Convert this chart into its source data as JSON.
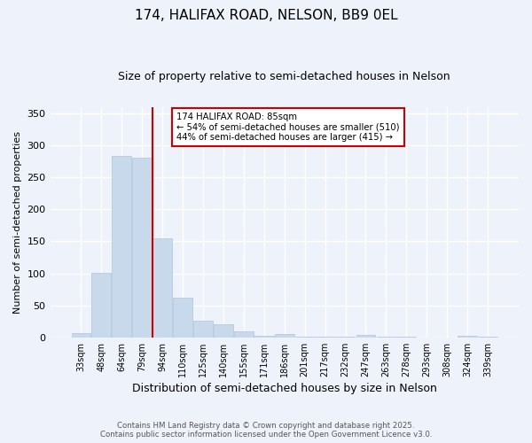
{
  "title": "174, HALIFAX ROAD, NELSON, BB9 0EL",
  "subtitle": "Size of property relative to semi-detached houses in Nelson",
  "xlabel": "Distribution of semi-detached houses by size in Nelson",
  "ylabel": "Number of semi-detached properties",
  "categories": [
    "33sqm",
    "48sqm",
    "64sqm",
    "79sqm",
    "94sqm",
    "110sqm",
    "125sqm",
    "140sqm",
    "155sqm",
    "171sqm",
    "186sqm",
    "201sqm",
    "217sqm",
    "232sqm",
    "247sqm",
    "263sqm",
    "278sqm",
    "293sqm",
    "308sqm",
    "324sqm",
    "339sqm"
  ],
  "values": [
    7,
    101,
    283,
    280,
    155,
    62,
    26,
    21,
    10,
    2,
    5,
    1,
    1,
    1,
    4,
    1,
    1,
    0,
    0,
    2,
    1
  ],
  "bar_color": "#c8d9ec",
  "bar_edge_color": "#adc4de",
  "vline_x": 3.5,
  "vline_color": "#cc0000",
  "annotation_title": "174 HALIFAX ROAD: 85sqm",
  "annotation_line2": "← 54% of semi-detached houses are smaller (510)",
  "annotation_line3": "44% of semi-detached houses are larger (415) →",
  "annotation_box_color": "#cc0000",
  "ylim": [
    0,
    360
  ],
  "yticks": [
    0,
    50,
    100,
    150,
    200,
    250,
    300,
    350
  ],
  "footer_line1": "Contains HM Land Registry data © Crown copyright and database right 2025.",
  "footer_line2": "Contains public sector information licensed under the Open Government Licence v3.0.",
  "bg_color": "#eef2fa",
  "plot_bg_color": "#eef2fa"
}
